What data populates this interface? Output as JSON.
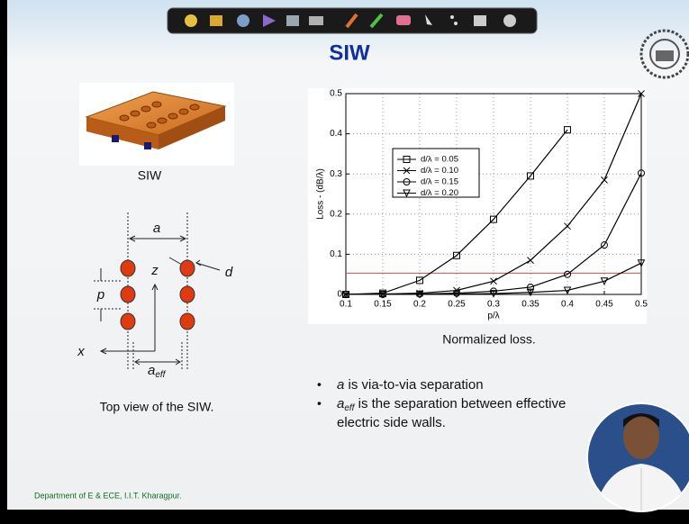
{
  "title": "SIW",
  "image_caption": "SIW",
  "diagram": {
    "a": "a",
    "p": "p",
    "z": "z",
    "d": "d",
    "x": "x",
    "a_eff": {
      "base": "a",
      "sub": "eff"
    },
    "caption": "Top view of the SIW."
  },
  "chart_caption": "Normalized loss.",
  "bullets": [
    {
      "term": "a",
      "lines": [
        "is via-to-via separation"
      ]
    },
    {
      "term": "a",
      "sub": "eff",
      "lines": [
        "is the separation between effective",
        "electric side walls."
      ]
    }
  ],
  "footer": "Department of E & ECE, I.I.T. Kharagpur.",
  "chart_data": {
    "type": "line",
    "x_label": "p/λ",
    "y_label": "Loss - (dB/λ)",
    "x": [
      0.1,
      0.15,
      0.2,
      0.25,
      0.3,
      0.35,
      0.4,
      0.45,
      0.5
    ],
    "series": [
      {
        "name": "d/λ = 0.05",
        "color": "#000000",
        "marker": "square",
        "values": [
          0,
          0.003,
          0.035,
          0.097,
          0.187,
          0.295,
          0.41,
          null,
          null
        ]
      },
      {
        "name": "d/λ = 0.10",
        "color": "#000000",
        "marker": "x",
        "values": [
          0,
          0.001,
          0.003,
          0.01,
          0.033,
          0.085,
          0.17,
          0.285,
          0.5
        ]
      },
      {
        "name": "d/λ = 0.15",
        "color": "#000000",
        "marker": "circle",
        "values": [
          0,
          0,
          0.001,
          0.003,
          0.008,
          0.018,
          0.05,
          0.123,
          0.302
        ]
      },
      {
        "name": "d/λ = 0.20",
        "color": "#000000",
        "marker": "triangle-down",
        "values": [
          0,
          0,
          0,
          0.001,
          0.002,
          0.005,
          0.01,
          0.033,
          0.078
        ]
      }
    ],
    "reference_line": {
      "value": 0.053,
      "color": "#c0504d"
    },
    "xlim": [
      0.1,
      0.5
    ],
    "ylim": [
      0,
      0.5
    ],
    "xticks": [
      0.1,
      0.15,
      0.2,
      0.25,
      0.3,
      0.35,
      0.4,
      0.45,
      0.5
    ],
    "yticks": [
      0,
      0.1,
      0.2,
      0.3,
      0.4,
      0.5
    ],
    "grid": true
  }
}
